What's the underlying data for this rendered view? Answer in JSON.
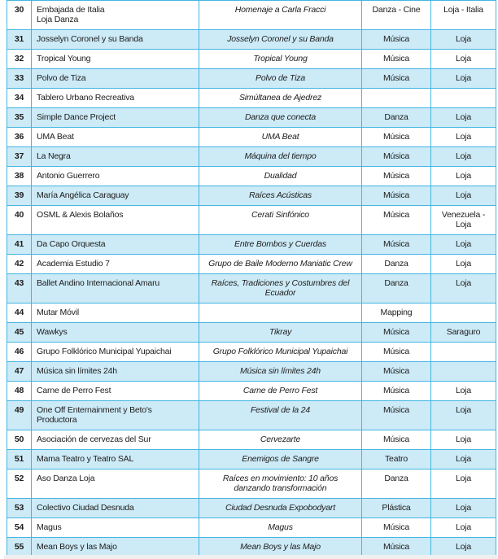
{
  "page": {
    "background_color": "#ffffff",
    "footer_strip_color": "#f0eff0"
  },
  "table": {
    "border_color": "#43b5e3",
    "alt_row_color": "#cdeaf7",
    "text_color": "#1d1d1b",
    "columns": [
      "number",
      "name",
      "title",
      "category",
      "location"
    ],
    "rows": [
      {
        "number": "30",
        "name": "Embajada de Italia\nLoja Danza",
        "title": "Homenaje a Carla Fracci",
        "category": "Danza - Cine",
        "location": "Loja - Italia"
      },
      {
        "number": "31",
        "name": "Josselyn Coronel y su Banda",
        "title": "Josselyn Coronel y su Banda",
        "category": "Música",
        "location": "Loja"
      },
      {
        "number": "32",
        "name": "Tropical Young",
        "title": "Tropical Young",
        "category": "Música",
        "location": "Loja"
      },
      {
        "number": "33",
        "name": "Polvo de Tiza",
        "title": "Polvo de Tiza",
        "category": "Música",
        "location": "Loja"
      },
      {
        "number": "34",
        "name": "Tablero Urbano Recreativa",
        "title": "Simúltanea de Ajedrez",
        "category": "",
        "location": ""
      },
      {
        "number": "35",
        "name": "Simple Dance Project",
        "title": "Danza que conecta",
        "category": "Danza",
        "location": "Loja"
      },
      {
        "number": "36",
        "name": "UMA Beat",
        "title": "UMA Beat",
        "category": "Música",
        "location": "Loja"
      },
      {
        "number": "37",
        "name": "La Negra",
        "title": "Máquina del tiempo",
        "category": "Música",
        "location": "Loja"
      },
      {
        "number": "38",
        "name": "Antonio Guerrero",
        "title": "Dualidad",
        "category": "Música",
        "location": "Loja"
      },
      {
        "number": "39",
        "name": "María Angélica Caraguay",
        "title": "Raíces Acústicas",
        "category": "Música",
        "location": "Loja"
      },
      {
        "number": "40",
        "name": "OSML & Alexis Bolaños",
        "title": "Cerati Sinfónico",
        "category": "Música",
        "location": "Venezuela - Loja"
      },
      {
        "number": "41",
        "name": "Da Capo Orquesta",
        "title": "Entre Bombos y Cuerdas",
        "category": "Música",
        "location": "Loja"
      },
      {
        "number": "42",
        "name": "Academia Estudio 7",
        "title": "Grupo de Baile Moderno Maniatic Crew",
        "category": "Danza",
        "location": "Loja"
      },
      {
        "number": "43",
        "name": "Ballet Andino Internacional Amaru",
        "title": "Raíces, Tradiciones y Costumbres del Ecuador",
        "category": "Danza",
        "location": "Loja"
      },
      {
        "number": "44",
        "name": "Mutar Móvil",
        "title": "",
        "category": "Mapping",
        "location": ""
      },
      {
        "number": "45",
        "name": "Wawkys",
        "title": "Tikray",
        "category": "Música",
        "location": "Saraguro"
      },
      {
        "number": "46",
        "name": "Grupo Folklórico Municipal Yupaichai",
        "title": "Grupo Folklórico Municipal Yupaichai",
        "category": "Música",
        "location": ""
      },
      {
        "number": "47",
        "name": "Música sin límites 24h",
        "title": "Música sin límites 24h",
        "category": "Música",
        "location": ""
      },
      {
        "number": "48",
        "name": "Carne de Perro Fest",
        "title": "Carne de Perro Fest",
        "category": "Música",
        "location": "Loja"
      },
      {
        "number": "49",
        "name": "One Off Enternainment y Beto's Productora",
        "title": "Festival de la 24",
        "category": "Música",
        "location": "Loja"
      },
      {
        "number": "50",
        "name": "Asociación de cervezas del Sur",
        "title": "Cervezarte",
        "category": "Música",
        "location": "Loja"
      },
      {
        "number": "51",
        "name": "Mama Teatro y Teatro SAL",
        "title": "Enemigos de Sangre",
        "category": "Teatro",
        "location": "Loja"
      },
      {
        "number": "52",
        "name": "Aso Danza Loja",
        "title": "Raíces en movimiento: 10 años danzando transformación",
        "category": "Danza",
        "location": "Loja"
      },
      {
        "number": "53",
        "name": "Colectivo Ciudad Desnuda",
        "title": "Ciudad Desnuda Expobodyart",
        "category": "Plástica",
        "location": "Loja"
      },
      {
        "number": "54",
        "name": "Magus",
        "title": "Magus",
        "category": "Música",
        "location": "Loja"
      },
      {
        "number": "55",
        "name": "Mean Boys y las Majo",
        "title": "Mean Boys y las Majo",
        "category": "Música",
        "location": "Loja"
      }
    ]
  }
}
